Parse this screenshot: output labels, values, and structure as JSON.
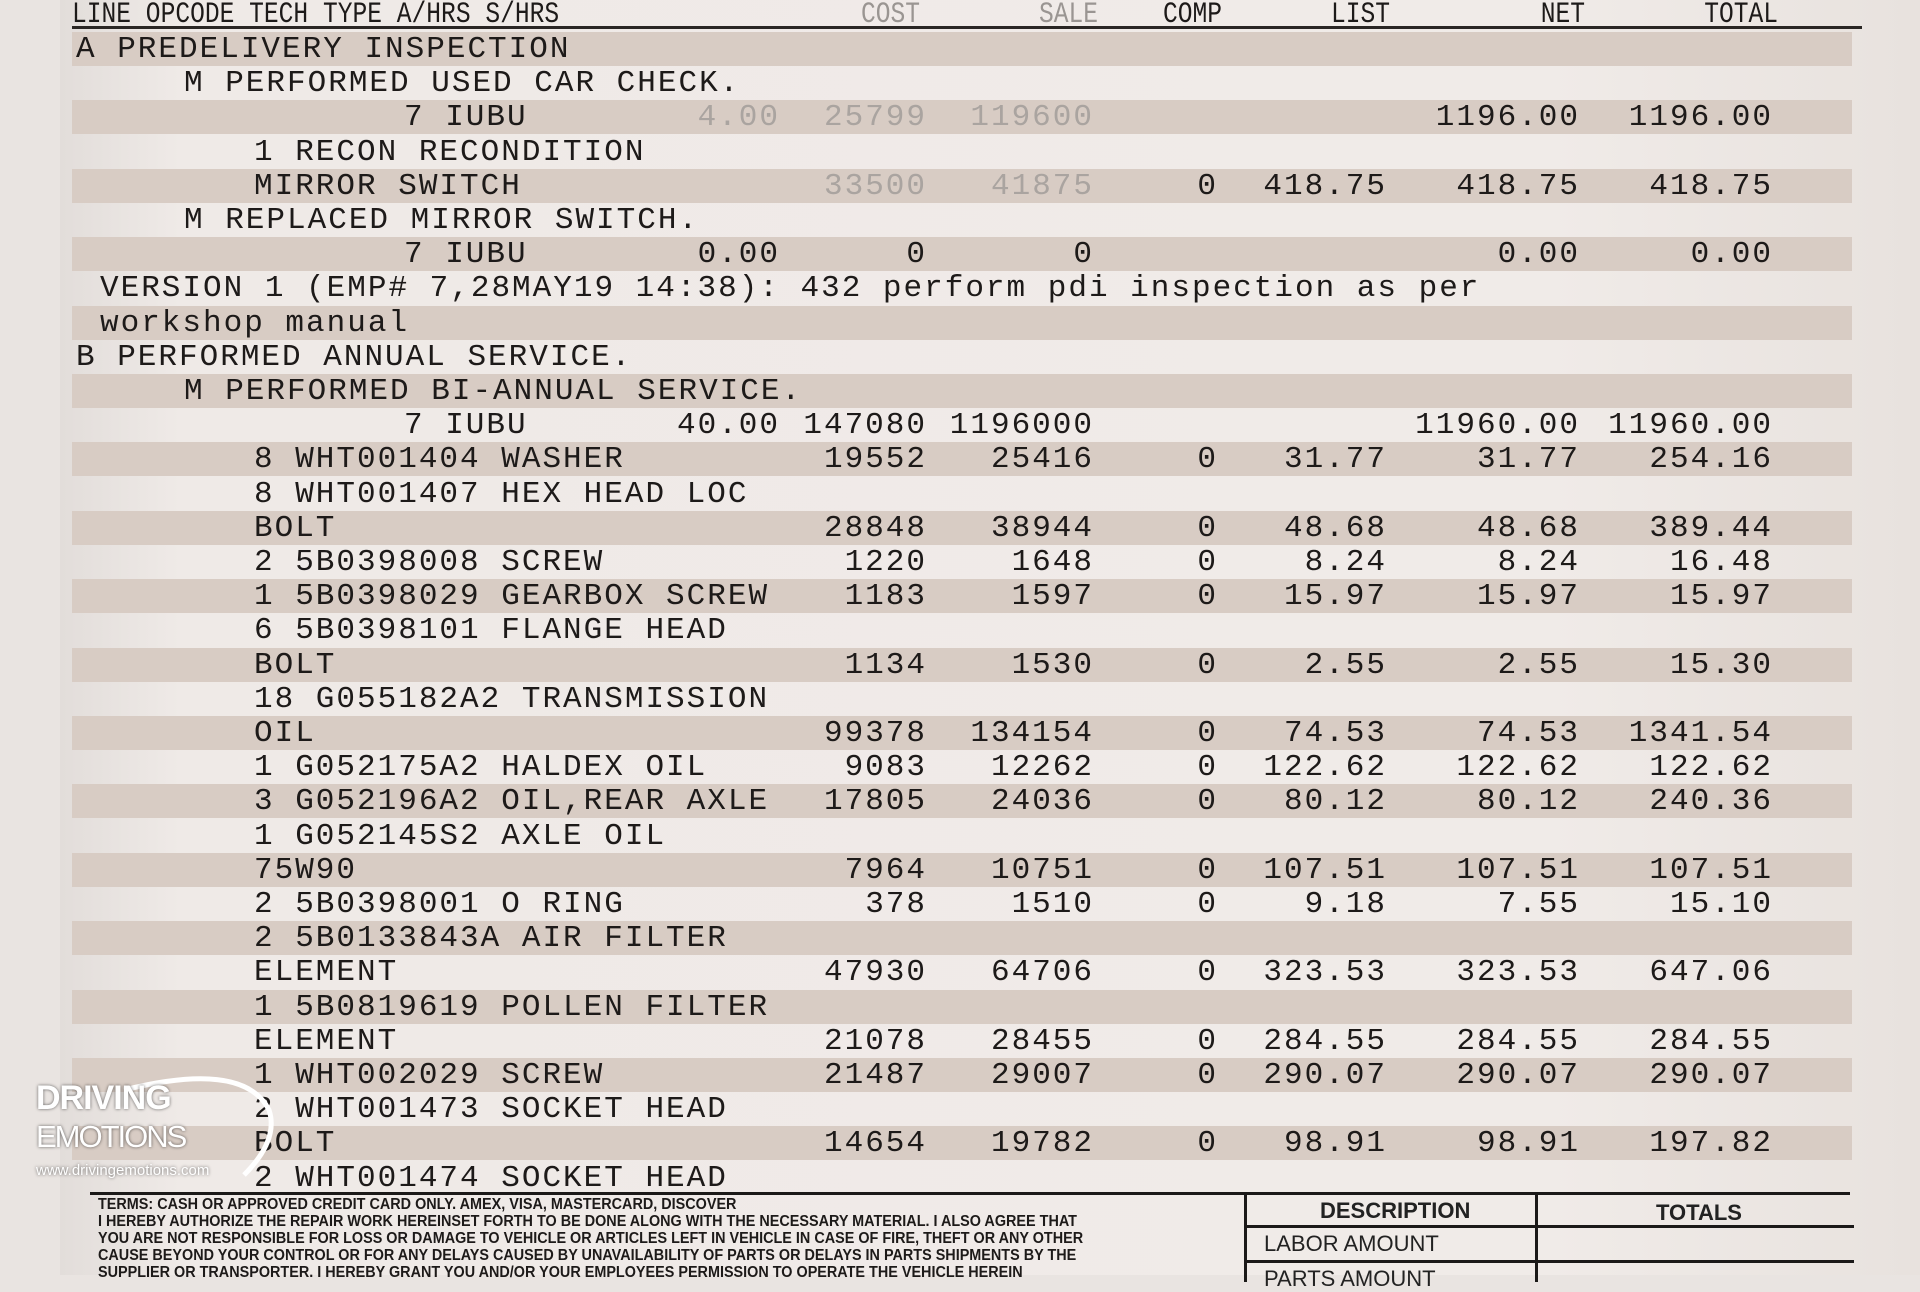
{
  "header": {
    "line": "LINE OPCODE TECH TYPE A/HRS S/HRS",
    "cost": "COST",
    "sale": "SALE",
    "comp": "COMP",
    "list": "LIST",
    "net": "NET",
    "total": "TOTAL"
  },
  "rows": [
    {
      "text": "A PREDELIVERY INSPECTION",
      "indent": 0
    },
    {
      "text": "M PERFORMED USED CAR CHECK.",
      "indent": 2
    },
    {
      "text": "7 IUBU",
      "indent": 4,
      "hrs": "4.00",
      "cost": "25799",
      "sale": "119600",
      "net": "1196.00",
      "total": "1196.00",
      "faint": true
    },
    {
      "text": "1 RECON RECONDITION",
      "indent": 3
    },
    {
      "text": "MIRROR SWITCH",
      "indent": 3,
      "cost": "33500",
      "sale": "41875",
      "comp": "0",
      "list": "418.75",
      "net": "418.75",
      "total": "418.75",
      "faint": true
    },
    {
      "text": "M REPLACED MIRROR SWITCH.",
      "indent": 2
    },
    {
      "text": "7 IUBU",
      "indent": 4,
      "hrs": "0.00",
      "cost": "0",
      "sale": "0",
      "net": "0.00",
      "total": "0.00"
    },
    {
      "text": "VERSION 1 (EMP# 7,28MAY19 14:38): 432 perform pdi inspection as per",
      "indent": 1
    },
    {
      "text": "workshop manual",
      "indent": 1
    },
    {
      "text": "B PERFORMED ANNUAL SERVICE.",
      "indent": 0
    },
    {
      "text": "M PERFORMED BI-ANNUAL SERVICE.",
      "indent": 2
    },
    {
      "text": "7 IUBU",
      "indent": 4,
      "hrs": "40.00",
      "cost": "147080",
      "sale": "1196000",
      "net": "11960.00",
      "total": "11960.00"
    },
    {
      "text": "8 WHT001404 WASHER",
      "indent": 3,
      "cost": "19552",
      "sale": "25416",
      "comp": "0",
      "list": "31.77",
      "net": "31.77",
      "total": "254.16"
    },
    {
      "text": "8 WHT001407 HEX HEAD LOC",
      "indent": 3
    },
    {
      "text": "BOLT",
      "indent": 3,
      "cost": "28848",
      "sale": "38944",
      "comp": "0",
      "list": "48.68",
      "net": "48.68",
      "total": "389.44"
    },
    {
      "text": "2 5B0398008 SCREW",
      "indent": 3,
      "cost": "1220",
      "sale": "1648",
      "comp": "0",
      "list": "8.24",
      "net": "8.24",
      "total": "16.48"
    },
    {
      "text": "1 5B0398029 GEARBOX SCREW",
      "indent": 3,
      "cost": "1183",
      "sale": "1597",
      "comp": "0",
      "list": "15.97",
      "net": "15.97",
      "total": "15.97"
    },
    {
      "text": "6 5B0398101 FLANGE HEAD",
      "indent": 3
    },
    {
      "text": "BOLT",
      "indent": 3,
      "cost": "1134",
      "sale": "1530",
      "comp": "0",
      "list": "2.55",
      "net": "2.55",
      "total": "15.30"
    },
    {
      "text": "18 G055182A2 TRANSMISSION",
      "indent": 3
    },
    {
      "text": "OIL",
      "indent": 3,
      "cost": "99378",
      "sale": "134154",
      "comp": "0",
      "list": "74.53",
      "net": "74.53",
      "total": "1341.54"
    },
    {
      "text": "1 G052175A2 HALDEX OIL",
      "indent": 3,
      "cost": "9083",
      "sale": "12262",
      "comp": "0",
      "list": "122.62",
      "net": "122.62",
      "total": "122.62"
    },
    {
      "text": "3 G052196A2 OIL,REAR AXLE",
      "indent": 3,
      "cost": "17805",
      "sale": "24036",
      "comp": "0",
      "list": "80.12",
      "net": "80.12",
      "total": "240.36"
    },
    {
      "text": "1 G052145S2 AXLE OIL",
      "indent": 3
    },
    {
      "text": "75W90",
      "indent": 3,
      "cost": "7964",
      "sale": "10751",
      "comp": "0",
      "list": "107.51",
      "net": "107.51",
      "total": "107.51"
    },
    {
      "text": "2 5B0398001 O RING",
      "indent": 3,
      "cost": "378",
      "sale": "1510",
      "comp": "0",
      "list": "9.18",
      "net": "7.55",
      "total": "15.10"
    },
    {
      "text": "2 5B0133843A AIR FILTER",
      "indent": 3
    },
    {
      "text": "ELEMENT",
      "indent": 3,
      "cost": "47930",
      "sale": "64706",
      "comp": "0",
      "list": "323.53",
      "net": "323.53",
      "total": "647.06"
    },
    {
      "text": "1 5B0819619 POLLEN FILTER",
      "indent": 3
    },
    {
      "text": "ELEMENT",
      "indent": 3,
      "cost": "21078",
      "sale": "28455",
      "comp": "0",
      "list": "284.55",
      "net": "284.55",
      "total": "284.55"
    },
    {
      "text": "1 WHT002029 SCREW",
      "indent": 3,
      "cost": "21487",
      "sale": "29007",
      "comp": "0",
      "list": "290.07",
      "net": "290.07",
      "total": "290.07"
    },
    {
      "text": "2 WHT001473 SOCKET HEAD",
      "indent": 3
    },
    {
      "text": "BOLT",
      "indent": 3,
      "cost": "14654",
      "sale": "19782",
      "comp": "0",
      "list": "98.91",
      "net": "98.91",
      "total": "197.82"
    },
    {
      "text": "2 WHT001474 SOCKET HEAD",
      "indent": 3
    }
  ],
  "terms": [
    "TERMS: CASH OR APPROVED CREDIT CARD ONLY.   AMEX, VISA, MASTERCARD, DISCOVER",
    "I HEREBY AUTHORIZE THE REPAIR WORK HEREINSET FORTH TO BE DONE ALONG WITH THE NECESSARY MATERIAL.  I ALSO AGREE THAT",
    "YOU ARE NOT RESPONSIBLE FOR LOSS OR DAMAGE TO VEHICLE OR ARTICLES LEFT IN VEHICLE IN CASE OF FIRE, THEFT OR ANY OTHER",
    "CAUSE BEYOND YOUR CONTROL OR FOR ANY DELAYS CAUSED BY UNAVAILABILITY OF PARTS OR DELAYS IN PARTS SHIPMENTS BY THE",
    "SUPPLIER OR TRANSPORTER. I HEREBY GRANT YOU AND/OR YOUR EMPLOYEES PERMISSION TO OPERATE THE VEHICLE HEREIN"
  ],
  "summary": {
    "description": "DESCRIPTION",
    "totals": "TOTALS",
    "labor": "LABOR AMOUNT",
    "parts": "PARTS AMOUNT"
  },
  "watermark": {
    "line1": "DRIVING",
    "line2": "EMOTIONS",
    "url": "www.drivingemotions.com"
  },
  "colors": {
    "paper": "#f0ebe8",
    "band": "#d8ccc4",
    "ink": "#1d1a19"
  }
}
